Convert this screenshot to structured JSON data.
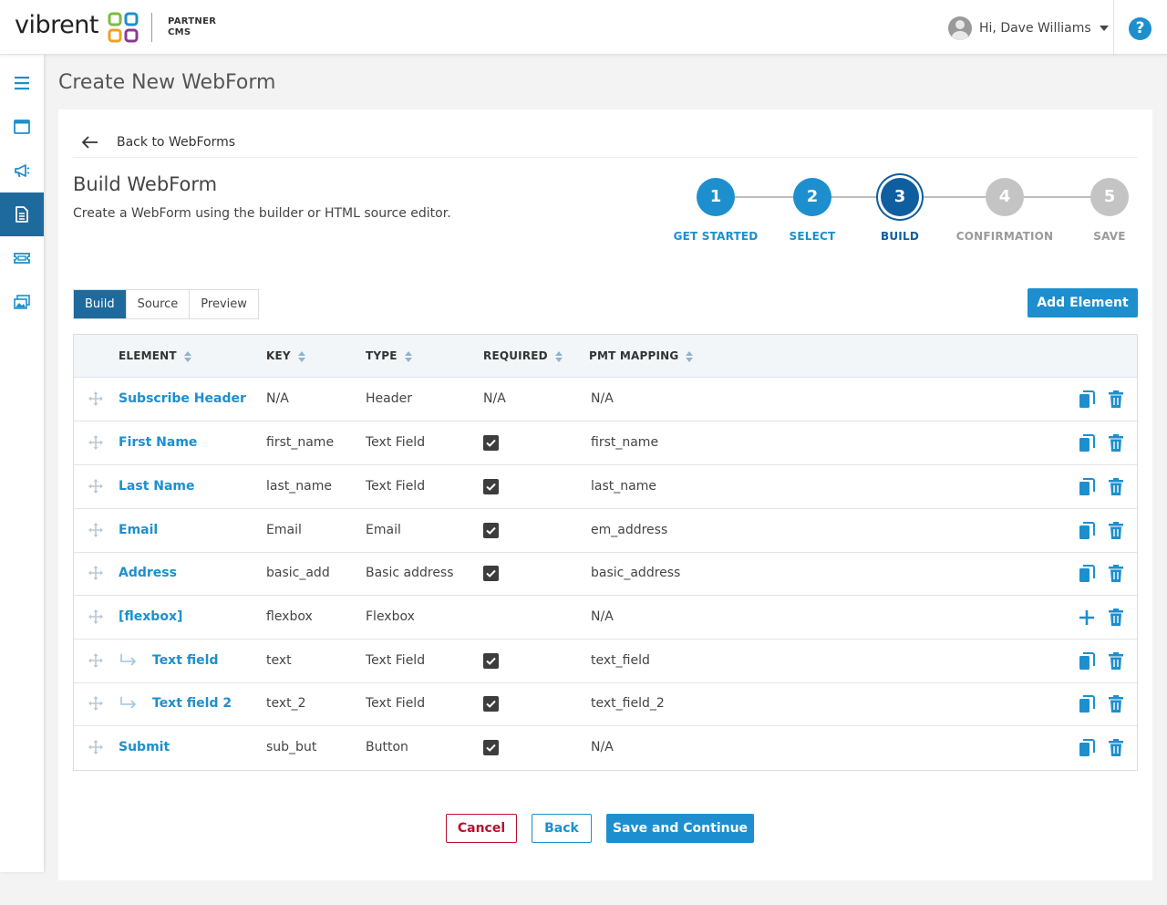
{
  "app": {
    "brand": "vibrent",
    "sub_line1": "PARTNER",
    "sub_line2": "CMS"
  },
  "header": {
    "user_greeting": "Hi, Dave Williams",
    "help_label": "?"
  },
  "sidebar": {
    "items": [
      {
        "icon": "menu-icon"
      },
      {
        "icon": "browser-window-icon"
      },
      {
        "icon": "megaphone-icon"
      },
      {
        "icon": "document-icon",
        "active": true
      },
      {
        "icon": "ticket-icon"
      },
      {
        "icon": "media-gallery-icon"
      }
    ]
  },
  "page": {
    "title": "Create New WebForm",
    "back_label": "Back to WebForms",
    "build_title": "Build WebForm",
    "build_subtitle": "Create a WebForm using the builder or HTML source editor."
  },
  "stepper": {
    "steps": [
      {
        "number": "1",
        "label": "GET STARTED",
        "state": "done"
      },
      {
        "number": "2",
        "label": "SELECT",
        "state": "done"
      },
      {
        "number": "3",
        "label": "BUILD",
        "state": "current"
      },
      {
        "number": "4",
        "label": "CONFIRMATION",
        "state": "todo"
      },
      {
        "number": "5",
        "label": "SAVE",
        "state": "todo"
      }
    ]
  },
  "tabs": [
    {
      "label": "Build",
      "active": true
    },
    {
      "label": "Source",
      "active": false
    },
    {
      "label": "Preview",
      "active": false
    }
  ],
  "add_element_label": "Add Element",
  "table": {
    "columns": [
      "ELEMENT",
      "KEY",
      "TYPE",
      "REQUIRED",
      "PMT MAPPING"
    ],
    "rows": [
      {
        "element": "Subscribe Header",
        "key": "N/A",
        "type": "Header",
        "required": "N/A",
        "mapping": "N/A",
        "indented": false,
        "action": "copy"
      },
      {
        "element": "First Name",
        "key": "first_name",
        "type": "Text Field",
        "required": true,
        "mapping": "first_name",
        "indented": false,
        "action": "copy"
      },
      {
        "element": "Last Name",
        "key": "last_name",
        "type": "Text Field",
        "required": true,
        "mapping": "last_name",
        "indented": false,
        "action": "copy"
      },
      {
        "element": "Email",
        "key": "Email",
        "type": "Email",
        "required": true,
        "mapping": "em_address",
        "indented": false,
        "action": "copy"
      },
      {
        "element": "Address",
        "key": "basic_add",
        "type": "Basic address",
        "required": true,
        "mapping": "basic_address",
        "indented": false,
        "action": "copy"
      },
      {
        "element": "[flexbox]",
        "key": "flexbox",
        "type": "Flexbox",
        "required": false,
        "mapping": "N/A",
        "indented": false,
        "action": "add"
      },
      {
        "element": "Text field",
        "key": "text",
        "type": "Text Field",
        "required": true,
        "mapping": "text_field",
        "indented": true,
        "action": "copy"
      },
      {
        "element": "Text field 2",
        "key": "text_2",
        "type": "Text Field",
        "required": true,
        "mapping": "text_field_2",
        "indented": true,
        "action": "copy"
      },
      {
        "element": "Submit",
        "key": "sub_but",
        "type": "Button",
        "required": true,
        "mapping": "N/A",
        "indented": false,
        "action": "copy"
      }
    ]
  },
  "footer": {
    "cancel_label": "Cancel",
    "back_label": "Back",
    "save_label": "Save and Continue"
  },
  "colors": {
    "accent": "#1d8fce",
    "active_nav": "#1e6a9c",
    "current_step": "#0f5ea0",
    "cancel": "#b8102e"
  }
}
